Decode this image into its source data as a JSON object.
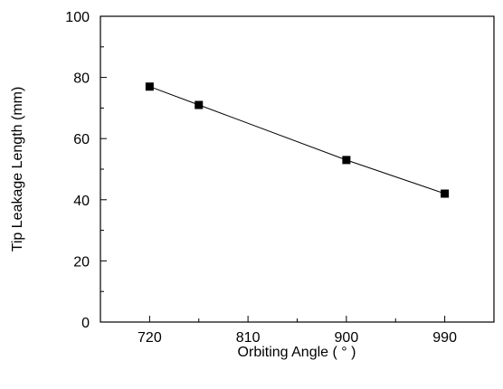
{
  "chart_data": {
    "type": "line",
    "title": "",
    "xlabel": "Orbiting Angle ( ° )",
    "ylabel": "Tip Leakage Length (mm)",
    "xlim": [
      675,
      1035
    ],
    "ylim": [
      0,
      100
    ],
    "x_ticks": [
      720,
      810,
      900,
      990
    ],
    "x_tick_labels": [
      "720",
      "810",
      "900",
      "990"
    ],
    "x_minor_ticks": [
      765,
      855,
      945
    ],
    "y_ticks": [
      0,
      20,
      40,
      60,
      80,
      100
    ],
    "y_tick_labels": [
      "0",
      "20",
      "40",
      "60",
      "80",
      "100"
    ],
    "y_minor_ticks": [
      10,
      30,
      50,
      70,
      90
    ],
    "grid": false,
    "marker": "filled-square",
    "series": [
      {
        "x": [
          720,
          765,
          900,
          990
        ],
        "y": [
          77,
          71,
          53,
          42
        ]
      }
    ],
    "line_color": "#000000",
    "marker_color": "#000000"
  }
}
